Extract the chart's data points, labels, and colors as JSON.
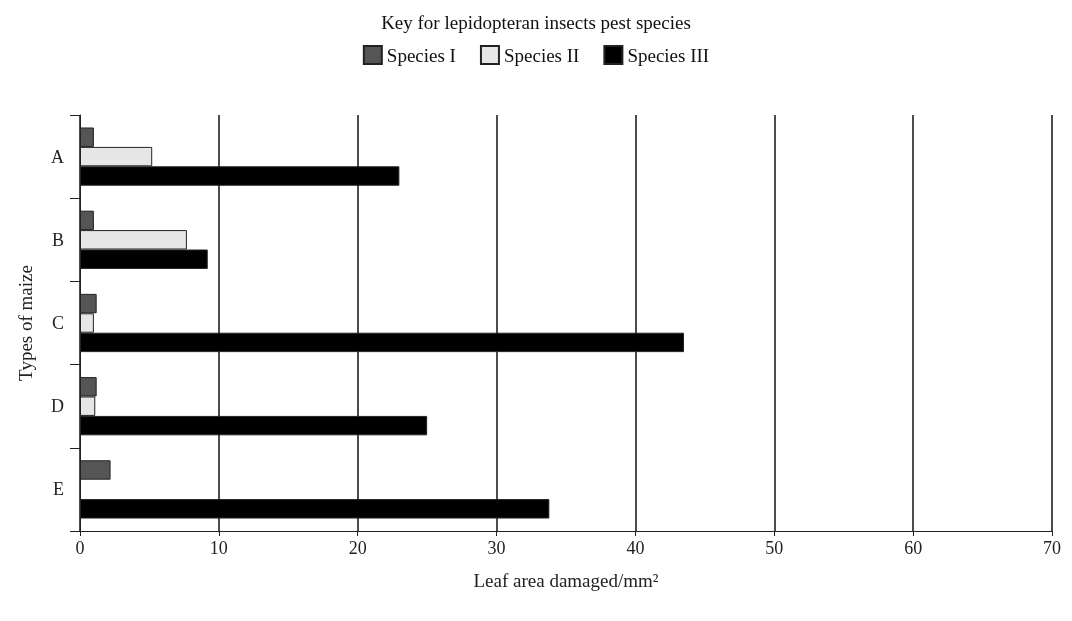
{
  "chart_data": {
    "type": "bar",
    "orientation": "horizontal",
    "legend_title": "Key for lepidopteran insects pest species",
    "categories": [
      "A",
      "B",
      "C",
      "D",
      "E"
    ],
    "series": [
      {
        "name": "Species I",
        "color": "#555555",
        "values": [
          1,
          1,
          1.2,
          1.2,
          2.2
        ]
      },
      {
        "name": "Species II",
        "color": "#e6e6e6",
        "values": [
          5.2,
          7.7,
          1,
          1.1,
          null
        ]
      },
      {
        "name": "Species III",
        "color": "#000000",
        "values": [
          23,
          9.2,
          43.5,
          25,
          33.8
        ]
      }
    ],
    "xlabel": "Leaf area damaged/mm²",
    "ylabel": "Types of maize",
    "xlim": [
      0,
      70
    ],
    "xticks": [
      0,
      10,
      20,
      30,
      40,
      50,
      60,
      70
    ],
    "grid": "x",
    "legend": "top"
  }
}
